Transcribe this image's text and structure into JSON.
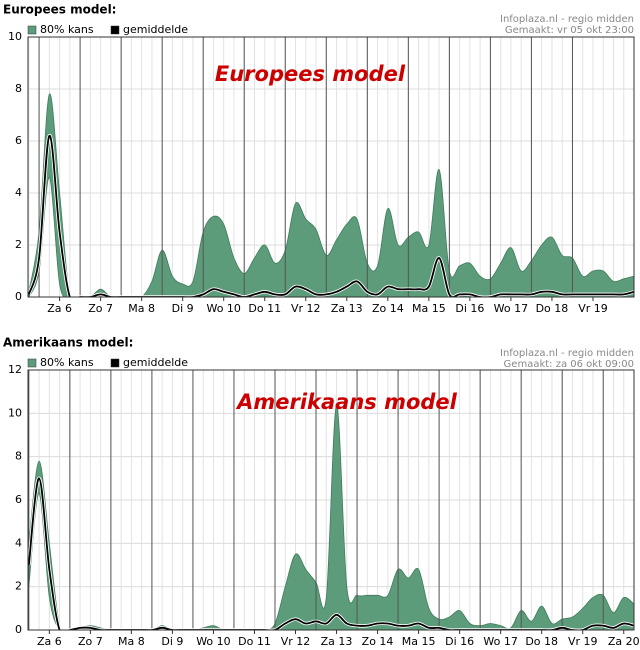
{
  "chart_data": [
    {
      "type": "area",
      "title": "Europees model:",
      "annotation": "Europees model",
      "source": "Infoplaza.nl - regio midden",
      "created": "Gemaakt: vr 05 okt 23:00",
      "x": [
        -0.25,
        0,
        0.25,
        0.5,
        0.75,
        1,
        1.25,
        1.5,
        1.75,
        2,
        2.25,
        2.5,
        2.75,
        3,
        3.25,
        3.5,
        3.75,
        4,
        4.25,
        4.5,
        4.75,
        5,
        5.25,
        5.5,
        5.75,
        6,
        6.25,
        6.5,
        6.75,
        7,
        7.25,
        7.5,
        7.75,
        8,
        8.25,
        8.5,
        8.75,
        9,
        9.25,
        9.5,
        9.75,
        10,
        10.25,
        10.5,
        10.75,
        11,
        11.25,
        11.5,
        11.75,
        12,
        12.25,
        12.5,
        12.75,
        13,
        13.25,
        13.5,
        13.75,
        14,
        14.25,
        14.5
      ],
      "xlim": [
        -0.27,
        14.5
      ],
      "xticks": [
        {
          "value": 0.5,
          "label": "Za 6"
        },
        {
          "value": 1.5,
          "label": "Zo 7"
        },
        {
          "value": 2.5,
          "label": "Ma 8"
        },
        {
          "value": 3.5,
          "label": "Di 9"
        },
        {
          "value": 4.5,
          "label": "Wo 10"
        },
        {
          "value": 5.5,
          "label": "Do 11"
        },
        {
          "value": 6.5,
          "label": "Vr 12"
        },
        {
          "value": 7.5,
          "label": "Za 13"
        },
        {
          "value": 8.5,
          "label": "Zo 14"
        },
        {
          "value": 9.5,
          "label": "Ma 15"
        },
        {
          "value": 10.5,
          "label": "Di 16"
        },
        {
          "value": 11.5,
          "label": "Wo 17"
        },
        {
          "value": 12.5,
          "label": "Do 18"
        },
        {
          "value": 13.5,
          "label": "Vr 19"
        }
      ],
      "ylim": [
        0,
        10
      ],
      "yticks": [
        0,
        2,
        4,
        6,
        8,
        10
      ],
      "grid": true,
      "series": [
        {
          "name": "80% kans",
          "color": "#5d9c7a",
          "values": [
            0.2,
            2.5,
            7.8,
            4,
            0,
            0,
            0,
            0.3,
            0,
            0,
            0,
            0,
            0.6,
            1.8,
            0.8,
            0.5,
            0.6,
            2.5,
            3.1,
            2.8,
            1.5,
            0.9,
            1.5,
            2.0,
            1.3,
            1.8,
            3.6,
            3.0,
            2.6,
            1.6,
            2.2,
            2.8,
            3.0,
            1.3,
            1.2,
            3.4,
            2.0,
            2.3,
            2.5,
            2.0,
            4.9,
            1.0,
            1.2,
            1.3,
            0.8,
            0.7,
            1.3,
            1.9,
            1.0,
            1.4,
            2.0,
            2.3,
            1.6,
            1.5,
            0.8,
            1.0,
            1.0,
            0.6,
            0.7,
            0.8
          ],
          "low": [
            0,
            1,
            4.6,
            0.5,
            0,
            0,
            0,
            0,
            0,
            0,
            0,
            0,
            0,
            0,
            0,
            0,
            0,
            0,
            0,
            0,
            0,
            0,
            0,
            0,
            0,
            0,
            0,
            0,
            0,
            0,
            0,
            0,
            0,
            0,
            0,
            0,
            0,
            0,
            0,
            0,
            0,
            0,
            0,
            0,
            0,
            0,
            0,
            0,
            0,
            0,
            0,
            0,
            0,
            0,
            0,
            0,
            0,
            0,
            0,
            0
          ]
        },
        {
          "name": "gemiddelde",
          "color": "#000000",
          "values": [
            0.1,
            1.5,
            6.2,
            2.5,
            0,
            0,
            0,
            0.1,
            0,
            0,
            0,
            0,
            0,
            0,
            0,
            0,
            0,
            0.1,
            0.3,
            0.2,
            0.1,
            0,
            0.1,
            0.2,
            0.1,
            0.1,
            0.4,
            0.3,
            0.1,
            0.1,
            0.2,
            0.4,
            0.6,
            0.2,
            0.1,
            0.4,
            0.3,
            0.3,
            0.3,
            0.4,
            1.5,
            0.1,
            0.1,
            0.1,
            0,
            0,
            0.1,
            0.1,
            0.1,
            0.1,
            0.2,
            0.2,
            0.1,
            0.1,
            0.1,
            0.1,
            0.1,
            0.1,
            0.1,
            0.2
          ]
        }
      ]
    },
    {
      "type": "area",
      "title": "Amerikaans model:",
      "annotation": "Amerikaans model",
      "source": "Infoplaza.nl - regio midden",
      "created": "Gemaakt: za 06 okt 09:00",
      "x": [
        0,
        0.25,
        0.5,
        0.75,
        1,
        1.25,
        1.5,
        1.75,
        2,
        2.25,
        2.5,
        2.75,
        3,
        3.25,
        3.5,
        3.75,
        4,
        4.25,
        4.5,
        4.75,
        5,
        5.25,
        5.5,
        5.75,
        6,
        6.25,
        6.5,
        6.75,
        7,
        7.25,
        7.5,
        7.75,
        8,
        8.25,
        8.5,
        8.75,
        9,
        9.25,
        9.5,
        9.75,
        10,
        10.25,
        10.5,
        10.75,
        11,
        11.25,
        11.5,
        11.75,
        12,
        12.25,
        12.5,
        12.75,
        13,
        13.25,
        13.5,
        13.75,
        14,
        14.25,
        14.5,
        14.75
      ],
      "xlim": [
        -0.02,
        14.75
      ],
      "xticks": [
        {
          "value": 0.5,
          "label": "Za 6"
        },
        {
          "value": 1.5,
          "label": "Zo 7"
        },
        {
          "value": 2.5,
          "label": "Ma 8"
        },
        {
          "value": 3.5,
          "label": "Di 9"
        },
        {
          "value": 4.5,
          "label": "Wo 10"
        },
        {
          "value": 5.5,
          "label": "Do 11"
        },
        {
          "value": 6.5,
          "label": "Vr 12"
        },
        {
          "value": 7.5,
          "label": "Za 13"
        },
        {
          "value": 8.5,
          "label": "Zo 14"
        },
        {
          "value": 9.5,
          "label": "Ma 15"
        },
        {
          "value": 10.5,
          "label": "Di 16"
        },
        {
          "value": 11.5,
          "label": "Wo 17"
        },
        {
          "value": 12.5,
          "label": "Do 18"
        },
        {
          "value": 13.5,
          "label": "Vr 19"
        },
        {
          "value": 14.5,
          "label": "Za 20"
        }
      ],
      "ylim": [
        0,
        12
      ],
      "yticks": [
        0,
        2,
        4,
        6,
        8,
        10,
        12
      ],
      "grid": true,
      "series": [
        {
          "name": "80% kans",
          "color": "#5d9c7a",
          "values": [
            4,
            7.8,
            4,
            0.2,
            0,
            0.1,
            0.2,
            0.1,
            0,
            0,
            0,
            0,
            0,
            0.2,
            0,
            0,
            0,
            0.1,
            0.2,
            0,
            0,
            0,
            0,
            0,
            0.3,
            2.0,
            3.5,
            2.8,
            2.2,
            1.5,
            10.4,
            2.0,
            1.6,
            1.6,
            1.6,
            1.6,
            2.8,
            2.4,
            2.8,
            1.0,
            0.5,
            0.6,
            0.9,
            0.3,
            0.2,
            0.3,
            0.2,
            0.1,
            0.9,
            0.4,
            1.1,
            0.3,
            0.5,
            0.6,
            1.0,
            1.5,
            1.6,
            0.8,
            1.5,
            1.2
          ],
          "low": [
            2,
            6.3,
            1.5,
            0,
            0,
            0,
            0,
            0,
            0,
            0,
            0,
            0,
            0,
            0,
            0,
            0,
            0,
            0,
            0,
            0,
            0,
            0,
            0,
            0,
            0,
            0,
            0,
            0,
            0,
            0,
            0,
            0,
            0,
            0,
            0,
            0,
            0,
            0,
            0,
            0,
            0,
            0,
            0,
            0,
            0,
            0,
            0,
            0,
            0,
            0,
            0,
            0,
            0,
            0,
            0,
            0,
            0,
            0,
            0,
            0
          ]
        },
        {
          "name": "gemiddelde",
          "color": "#000000",
          "values": [
            3,
            7.0,
            2.8,
            0,
            0,
            0.1,
            0.1,
            0,
            0,
            0,
            0,
            0,
            0,
            0.1,
            0,
            0,
            0,
            0,
            0,
            0,
            0,
            0,
            0,
            0,
            0,
            0.3,
            0.5,
            0.3,
            0.4,
            0.3,
            0.7,
            0.3,
            0.2,
            0.2,
            0.3,
            0.3,
            0.2,
            0.2,
            0.3,
            0.1,
            0.1,
            0,
            0,
            0,
            0,
            0,
            0,
            0,
            0,
            0,
            0,
            0,
            0.1,
            0,
            0,
            0.2,
            0.2,
            0.1,
            0.3,
            0.2
          ]
        }
      ]
    }
  ]
}
